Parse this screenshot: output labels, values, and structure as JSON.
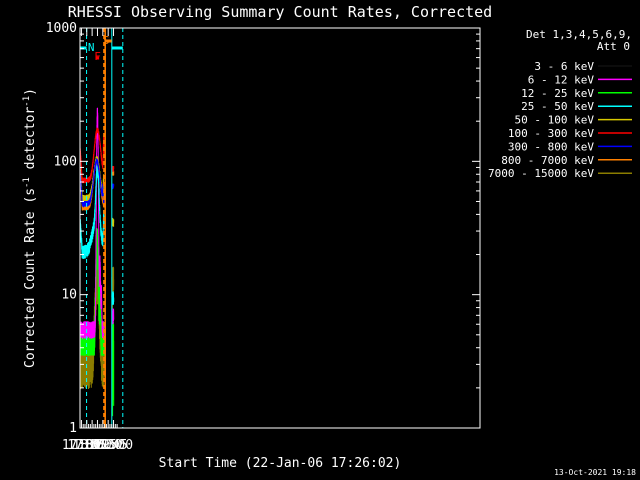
{
  "chart_data": {
    "type": "line",
    "title": "RHESSI Observing Summary Count Rates, Corrected",
    "xlabel": "Start Time (22-Jan-06 17:26:02)",
    "ylabel_main": "Corrected Count Rate (s",
    "ylabel_sup1": "-1",
    "ylabel_mid": " detector",
    "ylabel_sup2": "-1",
    "ylabel_end": ")",
    "yscale": "log",
    "ylim": [
      1,
      1000
    ],
    "yticks": [
      {
        "v": 1,
        "label": "1"
      },
      {
        "v": 10,
        "label": "10"
      },
      {
        "v": 100,
        "label": "100"
      },
      {
        "v": 1000,
        "label": "1000"
      }
    ],
    "xlim_min": [
      86.0,
      1207.5
    ],
    "xticks": [
      {
        "min": 90,
        "label": "17:30"
      },
      {
        "min": 105,
        "label": "17:45"
      },
      {
        "min": 120,
        "label": "18:00"
      },
      {
        "min": 135,
        "label": "18:15"
      },
      {
        "min": 150,
        "label": "18:30"
      },
      {
        "min": 165,
        "label": "18:45"
      },
      {
        "min": 180,
        "label": "19:00"
      }
    ],
    "legend_header": [
      "Det 1,3,4,5,6,9,",
      "Att 0"
    ],
    "legend_position": "right",
    "series": [
      {
        "name": "3 - 6 keV",
        "color": "#000000"
      },
      {
        "name": "6 - 12 keV",
        "color": "#ff00ff"
      },
      {
        "name": "12 - 25 keV",
        "color": "#00ff00"
      },
      {
        "name": "25 - 50 keV",
        "color": "#00ffff"
      },
      {
        "name": "50 - 100 keV",
        "color": "#d8c800"
      },
      {
        "name": "100 - 300 keV",
        "color": "#ff0000"
      },
      {
        "name": "300 - 800 keV",
        "color": "#0000ff"
      },
      {
        "name": "800 - 7000 keV",
        "color": "#ff8000"
      },
      {
        "name": "7000 - 15000 keV",
        "color": "#8b7d00"
      }
    ],
    "annotations": [
      {
        "label": "N",
        "color": "#00ffff"
      },
      {
        "label": "F",
        "color": "#ff0000"
      },
      {
        "label": "S",
        "color": "#ff8000"
      }
    ],
    "footer": "13-Oct-2021 19:18"
  }
}
